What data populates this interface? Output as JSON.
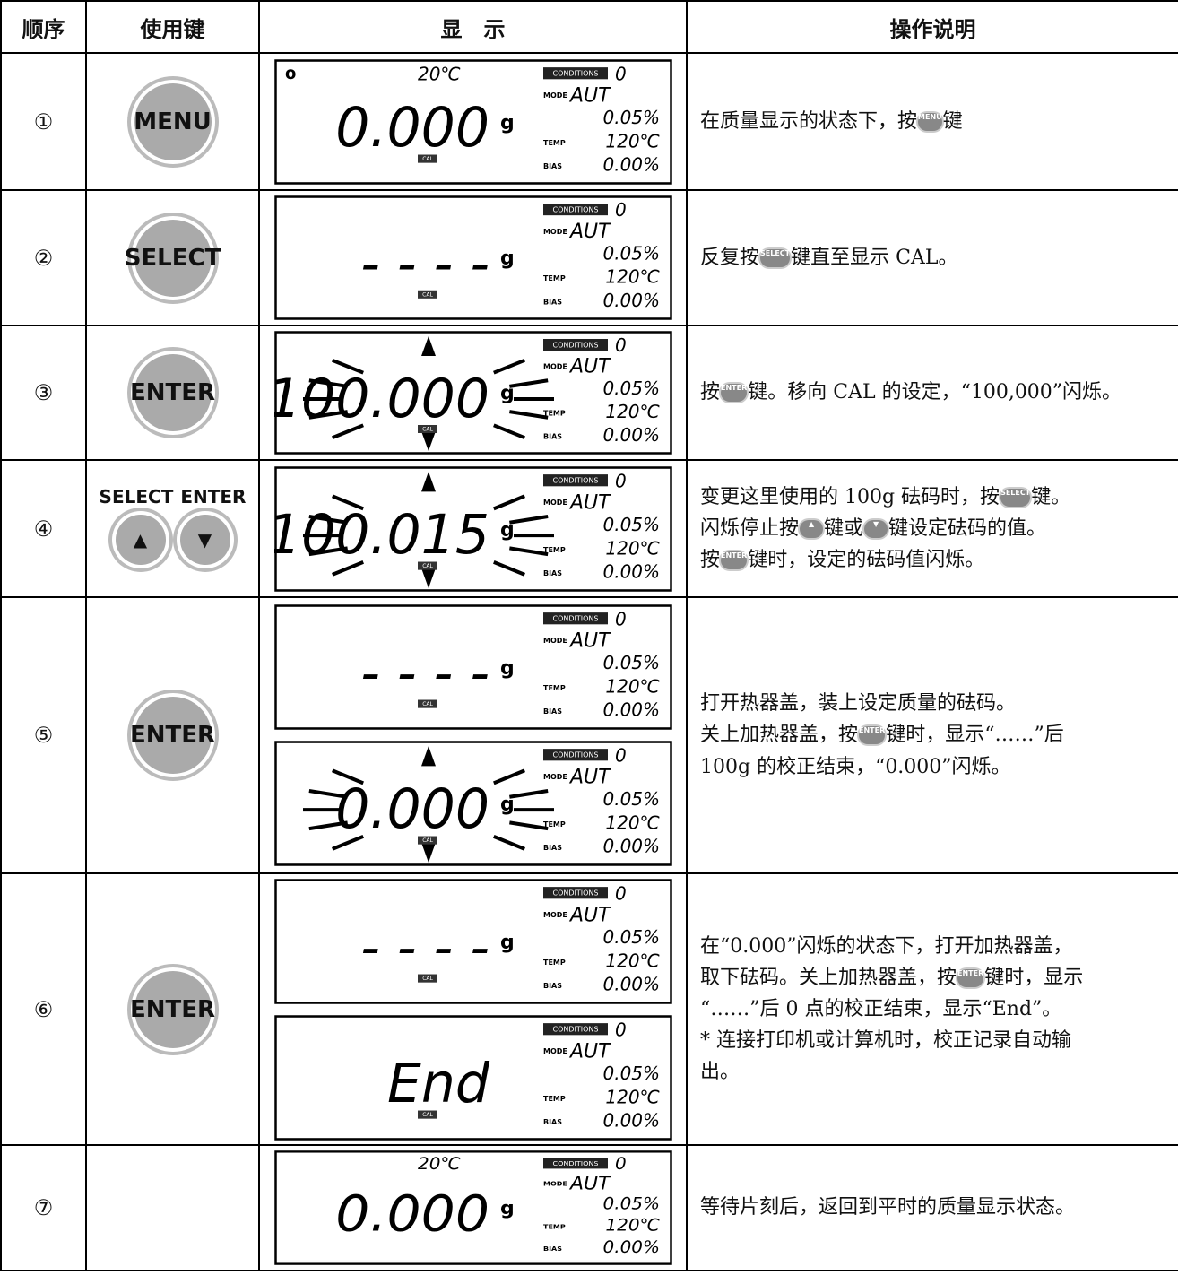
{
  "header": [
    "顺序",
    "使用键",
    "显　示",
    "操作说明"
  ],
  "lcd_labels": {
    "conditions": "CONDITIONS",
    "conditions_value": "0",
    "mode": "MODE",
    "mode_value": "AUT",
    "percent": "0.05%",
    "temp": "TEMP",
    "temp_value": "120℃",
    "bias": "BIAS",
    "bias_value": "0.00%",
    "cal": "CAL"
  },
  "rows": [
    {
      "step": "①",
      "keys": [
        {
          "label": "MENU",
          "style": "button"
        }
      ],
      "displays": [
        {
          "indicator": "o",
          "top_temp": "20℃",
          "main": "0.000",
          "unit": "g",
          "cal": true,
          "flash": false
        }
      ],
      "description": [
        [
          {
            "t": "在质量显示的状态下，按"
          },
          {
            "k": "MENU"
          },
          {
            "t": "键"
          }
        ]
      ]
    },
    {
      "step": "②",
      "keys": [
        {
          "label": "SELECT",
          "style": "button"
        }
      ],
      "displays": [
        {
          "main": "- - - -",
          "unit": "g",
          "cal": true,
          "flash": false
        }
      ],
      "description": [
        [
          {
            "t": "反复按"
          },
          {
            "k": "SELECT"
          },
          {
            "t": "键直至显示 CAL。"
          }
        ]
      ]
    },
    {
      "step": "③",
      "keys": [
        {
          "label": "ENTER",
          "style": "button"
        }
      ],
      "displays": [
        {
          "main": "100.000",
          "unit": "g",
          "cal": true,
          "flash": true
        }
      ],
      "description": [
        [
          {
            "t": "按"
          },
          {
            "k": "ENTER"
          },
          {
            "t": "键。移向 CAL 的设定，“100,000”闪烁。"
          }
        ]
      ]
    },
    {
      "step": "④",
      "keys": [
        {
          "label": "SELECT",
          "style": "text"
        },
        {
          "label": "ENTER",
          "style": "text"
        },
        {
          "label": "▲",
          "style": "button"
        },
        {
          "label": "▼",
          "style": "button"
        }
      ],
      "displays": [
        {
          "main": "100.015",
          "unit": "g",
          "cal": true,
          "flash": true
        }
      ],
      "description": [
        [
          {
            "t": "变更这里使用的 100g 砝码时，按"
          },
          {
            "k": "SELECT"
          },
          {
            "t": "键。"
          }
        ],
        [
          {
            "t": "闪烁停止按"
          },
          {
            "k": "▲"
          },
          {
            "t": "键或"
          },
          {
            "k": "▼"
          },
          {
            "t": "键设定砝码的值。"
          }
        ],
        [
          {
            "t": "按"
          },
          {
            "k": "ENTER"
          },
          {
            "t": "键时，设定的砝码值闪烁。"
          }
        ]
      ]
    },
    {
      "step": "⑤",
      "keys": [
        {
          "label": "ENTER",
          "style": "button"
        }
      ],
      "displays": [
        {
          "main": "- - - -",
          "unit": "g",
          "cal": true,
          "flash": false
        },
        {
          "main": "0.000",
          "unit": "g",
          "cal": true,
          "flash": true
        }
      ],
      "description": [
        [
          {
            "t": "打开热器盖，装上设定质量的砝码。"
          }
        ],
        [
          {
            "t": "关上加热器盖，按"
          },
          {
            "k": "ENTER"
          },
          {
            "t": "键时，显示“……”后"
          }
        ],
        [
          {
            "t": "100g 的校正结束，“0.000”闪烁。"
          }
        ]
      ]
    },
    {
      "step": "⑥",
      "keys": [
        {
          "label": "ENTER",
          "style": "button"
        }
      ],
      "displays": [
        {
          "main": "- - - -",
          "unit": "g",
          "cal": true,
          "flash": false
        },
        {
          "main": "End",
          "cal": true,
          "flash": false
        }
      ],
      "description": [
        [
          {
            "t": "在“0.000”闪烁的状态下，打开加热器盖，"
          }
        ],
        [
          {
            "t": "取下砝码。关上加热器盖，按"
          },
          {
            "k": "ENTER"
          },
          {
            "t": "键时，显示"
          }
        ],
        [
          {
            "t": "“……”后 0 点的校正结束，显示“End”。"
          }
        ],
        [
          {
            "t": "* 连接打印机或计算机时，校正记录自动输"
          }
        ],
        [
          {
            "t": "出。"
          }
        ]
      ]
    },
    {
      "step": "⑦",
      "keys": [],
      "displays": [
        {
          "top_temp": "20℃",
          "main": "0.000",
          "unit": "g",
          "cal": false,
          "flash": false
        }
      ],
      "description": [
        [
          {
            "t": "等待片刻后，返回到平时的质量显示状态。"
          }
        ]
      ]
    }
  ]
}
